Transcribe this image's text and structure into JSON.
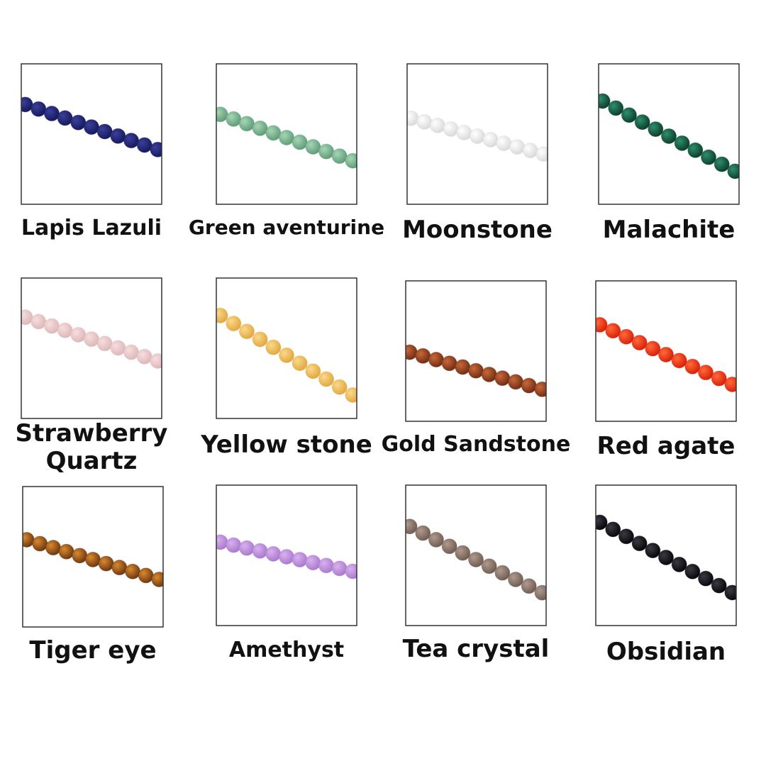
{
  "items": [
    {
      "label": "Lapis Lazuli"
    },
    {
      "label": "Green aventurine"
    },
    {
      "label": "Moonstone"
    },
    {
      "label": "Malachite"
    },
    {
      "label": "Strawberry Quartz"
    },
    {
      "label": "Yellow stone"
    },
    {
      "label": "Gold Sandstone"
    },
    {
      "label": "Red agate"
    },
    {
      "label": "Tiger eye"
    },
    {
      "label": "Amethyst"
    },
    {
      "label": "Tea crystal"
    },
    {
      "label": "Obsidian"
    }
  ]
}
